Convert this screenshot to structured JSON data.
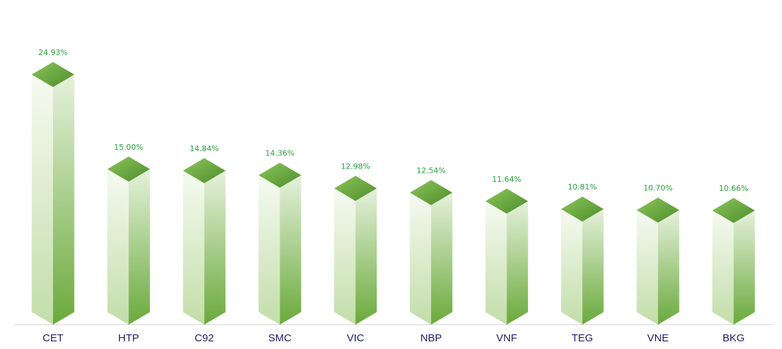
{
  "chart_data": {
    "type": "bar3d",
    "categories": [
      "CET",
      "HTP",
      "C92",
      "SMC",
      "VIC",
      "NBP",
      "VNF",
      "TEG",
      "VNE",
      "BKG"
    ],
    "values": [
      24.93,
      15.0,
      14.84,
      14.36,
      12.98,
      12.54,
      11.64,
      10.81,
      10.7,
      10.66
    ],
    "value_labels": [
      "24.93%",
      "15.00%",
      "14.84%",
      "14.36%",
      "12.98%",
      "12.54%",
      "11.64%",
      "10.81%",
      "10.70%",
      "10.66%"
    ],
    "color": "#6aaa3c"
  }
}
